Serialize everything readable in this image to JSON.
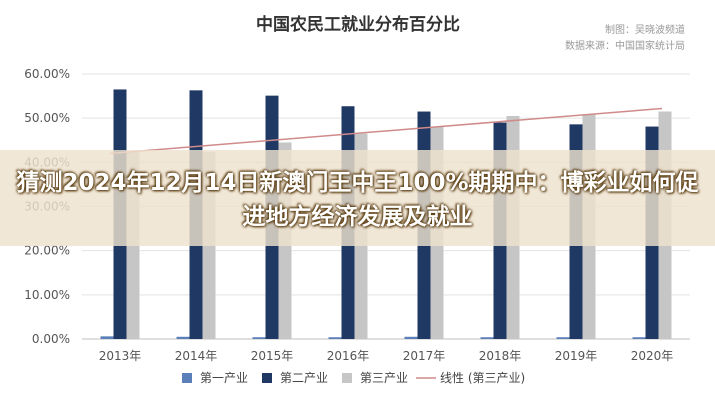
{
  "chart_data": {
    "type": "bar",
    "title": "中国农民工就业分布百分比",
    "source": {
      "maker_label": "制图：吴晓波频道",
      "source_label": "数据来源：中国国家统计局"
    },
    "categories": [
      "2013年",
      "2014年",
      "2015年",
      "2016年",
      "2017年",
      "2018年",
      "2019年",
      "2020年"
    ],
    "y_ticks": [
      "0.00%",
      "10.00%",
      "20.00%",
      "30.00%",
      "40.00%",
      "50.00%",
      "60.00%"
    ],
    "ylim": [
      0,
      0.6
    ],
    "series": [
      {
        "name": "第一产业",
        "color": "#5b7fb8",
        "values": [
          0.006,
          0.005,
          0.004,
          0.004,
          0.005,
          0.004,
          0.004,
          0.004
        ]
      },
      {
        "name": "第二产业",
        "color": "#1f3864",
        "values": [
          0.565,
          0.563,
          0.551,
          0.527,
          0.515,
          0.49,
          0.486,
          0.481
        ]
      },
      {
        "name": "第三产业",
        "color": "#c6c6c6",
        "values": [
          0.423,
          0.424,
          0.445,
          0.465,
          0.48,
          0.505,
          0.509,
          0.515
        ]
      }
    ],
    "trendline": {
      "name": "线性 (第三产业)",
      "color": "#d08a8a",
      "start": 0.42,
      "end": 0.522
    },
    "grid": true,
    "legend": "bottom"
  },
  "overlay": {
    "headline": "猜测2024年12月14日新澳门王中王100%期期中：博彩业如何促进地方经济发展及就业"
  }
}
